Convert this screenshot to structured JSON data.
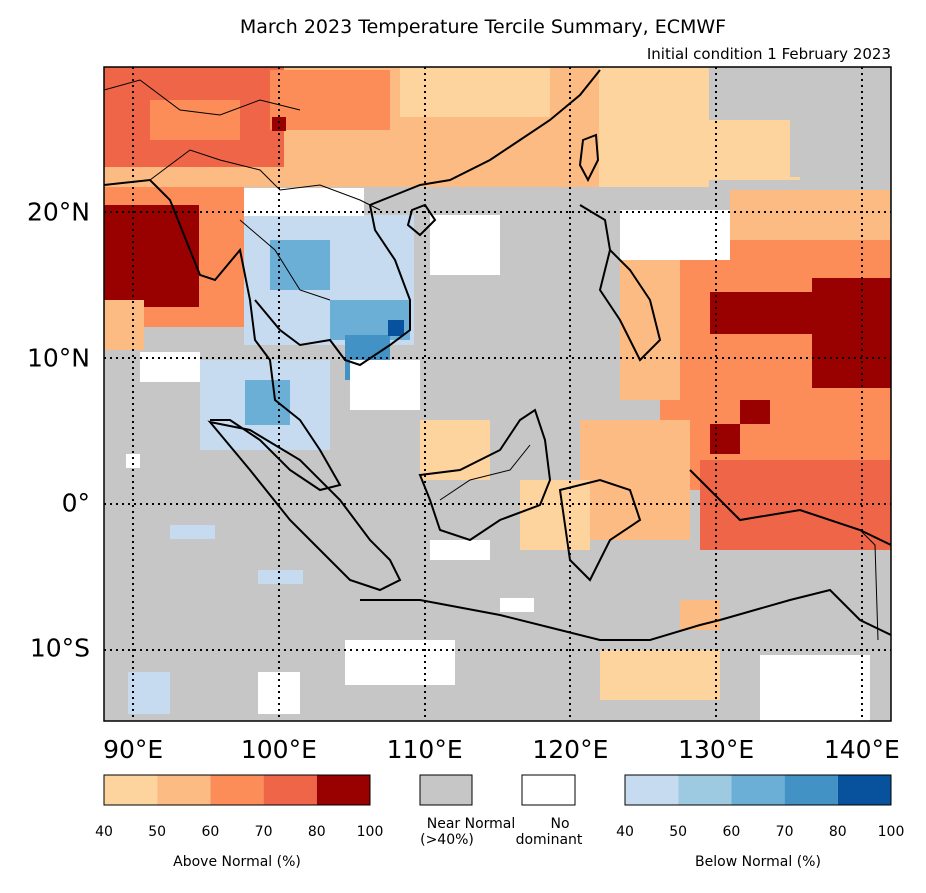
{
  "title": "March 2023 Temperature Tercile Summary, ECMWF",
  "subtitle": "Initial condition 1 February 2023",
  "map": {
    "lon_range": [
      88,
      142
    ],
    "lat_range": [
      -15,
      30
    ],
    "lon_labels": [
      {
        "lon": 90,
        "label": "90°E"
      },
      {
        "lon": 100,
        "label": "100°E"
      },
      {
        "lon": 110,
        "label": "110°E"
      },
      {
        "lon": 120,
        "label": "120°E"
      },
      {
        "lon": 130,
        "label": "130°E"
      },
      {
        "lon": 140,
        "label": "140°E"
      }
    ],
    "lat_labels": [
      {
        "lat": 20,
        "label": "20°N"
      },
      {
        "lat": 10,
        "label": "10°N"
      },
      {
        "lat": 0,
        "label": "0°"
      },
      {
        "lat": -10,
        "label": "10°S"
      }
    ],
    "background_color": "#c6c6c6"
  },
  "legend": {
    "above_normal": {
      "caption": "Above Normal (%)",
      "ticks": [
        "40",
        "50",
        "60",
        "70",
        "80",
        "100"
      ],
      "colors": [
        "#fdd49e",
        "#fdbb84",
        "#fc8d59",
        "#ef6548",
        "#990000"
      ]
    },
    "near_normal": {
      "caption_line1": "Near Normal",
      "caption_line2": "(>40%)",
      "color": "#c6c6c6"
    },
    "no_dominant": {
      "caption_line1": "No",
      "caption_line2": "dominant",
      "color": "#ffffff"
    },
    "below_normal": {
      "caption": "Below Normal (%)",
      "ticks": [
        "40",
        "50",
        "60",
        "70",
        "80",
        "100"
      ],
      "colors": [
        "#c6dbef",
        "#9ecae1",
        "#6baed6",
        "#4292c6",
        "#08519c"
      ]
    }
  }
}
